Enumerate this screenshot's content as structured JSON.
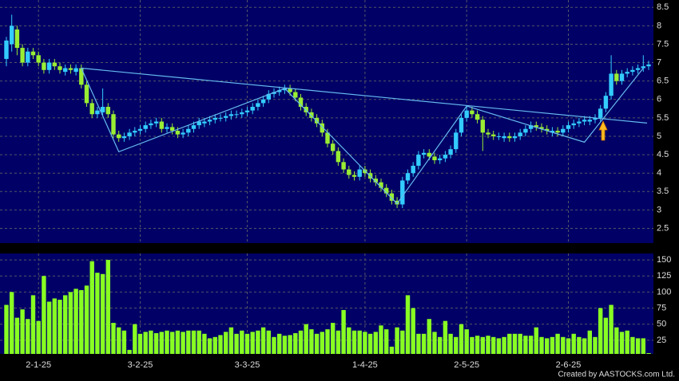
{
  "chart_data": {
    "type": "candlestick",
    "credit": "Created by AASTOCKS.com Ltd.",
    "categories": [
      null,
      null,
      null,
      null,
      null,
      null,
      "2-1-25",
      null,
      null,
      null,
      null,
      null,
      null,
      null,
      null,
      null,
      null,
      null,
      null,
      null,
      null,
      null,
      null,
      null,
      null,
      "3-2-25",
      null,
      null,
      null,
      null,
      null,
      null,
      null,
      null,
      null,
      null,
      null,
      null,
      null,
      null,
      null,
      null,
      null,
      null,
      null,
      "3-3-25",
      null,
      null,
      null,
      null,
      null,
      null,
      null,
      null,
      null,
      null,
      null,
      null,
      null,
      null,
      null,
      null,
      null,
      null,
      null,
      null,
      null,
      "1-4-25",
      null,
      null,
      null,
      null,
      null,
      null,
      null,
      null,
      null,
      null,
      null,
      null,
      null,
      null,
      null,
      null,
      null,
      null,
      "2-5-25",
      null,
      null,
      null,
      null,
      null,
      null,
      null,
      null,
      null,
      null,
      null,
      null,
      null,
      null,
      null,
      null,
      null,
      null,
      "2-6-25",
      null,
      null,
      null,
      null,
      null,
      null,
      null,
      null,
      null,
      null,
      null,
      null,
      null,
      null,
      null
    ],
    "open": [
      7.1,
      7.5,
      7.9,
      7.4,
      7.0,
      7.3,
      7.2,
      7.0,
      6.8,
      7.0,
      6.9,
      6.75,
      6.85,
      6.75,
      6.85,
      6.4,
      5.9,
      5.6,
      5.65,
      5.8,
      5.6,
      5.05,
      4.95,
      5.0,
      5.1,
      5.15,
      5.2,
      5.3,
      5.35,
      5.4,
      5.2,
      5.25,
      5.15,
      5.05,
      5.1,
      5.2,
      5.3,
      5.35,
      5.4,
      5.45,
      5.5,
      5.5,
      5.55,
      5.6,
      5.6,
      5.65,
      5.7,
      5.8,
      5.9,
      6.0,
      6.15,
      6.2,
      6.25,
      6.3,
      6.2,
      6.05,
      5.8,
      5.65,
      5.5,
      5.35,
      5.1,
      4.8,
      4.6,
      4.3,
      4.1,
      3.95,
      3.9,
      4.1,
      4.0,
      3.85,
      3.75,
      3.6,
      3.45,
      3.25,
      3.15,
      3.8,
      4.0,
      4.2,
      4.5,
      4.55,
      4.45,
      4.35,
      4.4,
      4.5,
      4.65,
      5.1,
      5.5,
      5.7,
      5.6,
      5.45,
      5.1,
      5.05,
      5.0,
      4.95,
      5.0,
      4.95,
      5.0,
      5.1,
      5.2,
      5.3,
      5.25,
      5.2,
      5.1,
      5.15,
      5.1,
      5.2,
      5.3,
      5.35,
      5.4,
      5.4,
      5.45,
      5.5,
      5.75,
      6.1,
      6.7,
      6.5,
      6.7,
      6.75,
      6.8,
      6.85,
      6.9
    ],
    "high": [
      7.7,
      8.3,
      8.0,
      7.5,
      7.4,
      7.4,
      7.3,
      7.1,
      7.1,
      7.1,
      7.0,
      6.95,
      6.95,
      6.95,
      6.95,
      6.5,
      6.0,
      5.8,
      6.3,
      5.9,
      5.7,
      5.15,
      5.1,
      5.2,
      5.25,
      5.3,
      5.4,
      5.45,
      5.5,
      5.5,
      5.35,
      5.35,
      5.25,
      5.2,
      5.3,
      5.4,
      5.5,
      5.5,
      5.55,
      5.6,
      5.6,
      5.65,
      5.7,
      5.7,
      5.75,
      5.8,
      5.9,
      6.0,
      6.1,
      6.25,
      6.3,
      6.35,
      6.4,
      6.4,
      6.3,
      6.15,
      5.9,
      5.75,
      5.6,
      5.45,
      5.2,
      4.9,
      4.7,
      4.4,
      4.2,
      4.05,
      4.2,
      4.2,
      4.1,
      3.95,
      3.85,
      3.7,
      3.55,
      3.35,
      3.9,
      4.1,
      4.3,
      4.6,
      4.65,
      4.65,
      4.55,
      4.5,
      4.6,
      4.75,
      5.2,
      5.6,
      5.8,
      5.8,
      5.7,
      5.55,
      5.2,
      5.15,
      5.1,
      5.1,
      5.1,
      5.1,
      5.2,
      5.3,
      5.4,
      5.4,
      5.35,
      5.3,
      5.25,
      5.25,
      5.3,
      5.4,
      5.45,
      5.5,
      5.55,
      5.55,
      5.6,
      5.85,
      6.2,
      7.2,
      6.8,
      6.8,
      6.85,
      6.9,
      6.95,
      7.2,
      7.05
    ],
    "low": [
      6.9,
      7.3,
      7.2,
      6.9,
      6.9,
      7.1,
      6.9,
      6.7,
      6.7,
      6.8,
      6.7,
      6.65,
      6.7,
      6.65,
      6.3,
      5.8,
      5.5,
      5.5,
      5.55,
      5.5,
      4.95,
      4.85,
      4.85,
      4.9,
      5.0,
      5.05,
      5.1,
      5.2,
      5.25,
      5.1,
      5.1,
      5.05,
      4.95,
      4.95,
      5.0,
      5.1,
      5.2,
      5.25,
      5.3,
      5.35,
      5.4,
      5.4,
      5.45,
      5.5,
      5.5,
      5.55,
      5.6,
      5.7,
      5.8,
      5.9,
      6.05,
      6.1,
      6.15,
      6.1,
      5.95,
      5.7,
      5.55,
      5.4,
      5.25,
      5.0,
      4.7,
      4.5,
      4.2,
      4.0,
      3.85,
      3.8,
      3.8,
      3.9,
      3.75,
      3.65,
      3.5,
      3.35,
      3.15,
      3.05,
      3.05,
      3.7,
      3.9,
      4.1,
      4.4,
      4.35,
      4.25,
      4.25,
      4.3,
      4.4,
      4.55,
      5.0,
      5.4,
      5.5,
      5.35,
      4.6,
      4.95,
      4.9,
      4.9,
      4.85,
      4.85,
      4.85,
      4.9,
      5.0,
      5.1,
      5.15,
      5.1,
      5.05,
      5.0,
      5.0,
      5.0,
      5.1,
      5.2,
      5.25,
      5.3,
      5.3,
      5.35,
      5.4,
      5.65,
      6.0,
      6.4,
      6.4,
      6.6,
      6.65,
      6.7,
      6.75,
      6.8
    ],
    "close": [
      7.6,
      8.0,
      7.4,
      7.0,
      7.3,
      7.2,
      7.0,
      6.8,
      7.0,
      6.9,
      6.8,
      6.85,
      6.8,
      6.85,
      6.4,
      5.9,
      5.6,
      5.7,
      5.8,
      5.6,
      5.05,
      4.95,
      5.0,
      5.1,
      5.15,
      5.2,
      5.3,
      5.35,
      5.4,
      5.2,
      5.25,
      5.15,
      5.05,
      5.1,
      5.2,
      5.3,
      5.4,
      5.4,
      5.45,
      5.5,
      5.5,
      5.55,
      5.6,
      5.6,
      5.65,
      5.7,
      5.8,
      5.9,
      6.0,
      6.15,
      6.2,
      6.25,
      6.3,
      6.2,
      6.05,
      5.8,
      5.65,
      5.5,
      5.35,
      5.1,
      4.8,
      4.6,
      4.3,
      4.1,
      3.95,
      3.9,
      4.1,
      4.0,
      3.85,
      3.75,
      3.6,
      3.45,
      3.25,
      3.15,
      3.8,
      4.0,
      4.2,
      4.5,
      4.55,
      4.45,
      4.35,
      4.4,
      4.5,
      4.65,
      5.1,
      5.5,
      5.7,
      5.6,
      5.45,
      5.1,
      5.05,
      5.0,
      5.0,
      5.0,
      4.95,
      5.0,
      5.1,
      5.2,
      5.3,
      5.25,
      5.2,
      5.15,
      5.15,
      5.1,
      5.2,
      5.3,
      5.35,
      5.4,
      5.45,
      5.45,
      5.5,
      5.75,
      6.1,
      6.7,
      6.5,
      6.7,
      6.75,
      6.8,
      6.85,
      6.9,
      6.95
    ],
    "up_color": "#33ccff",
    "down_color": "#99ee33",
    "ylim": [
      2.1,
      8.7
    ],
    "yticks": [
      2.5,
      3,
      3.5,
      4,
      4.5,
      5,
      5.5,
      6,
      6.5,
      7,
      7.5,
      8,
      8.5
    ],
    "grid": true,
    "trend_lines": {
      "color": "#66bbee",
      "lines": [
        {
          "x": [
            14,
            119.7
          ],
          "y": [
            6.85,
            5.36
          ]
        },
        {
          "x": [
            14,
            21,
            52,
            73,
            86,
            108,
            119
          ],
          "y": [
            6.85,
            4.58,
            6.3,
            3.17,
            5.82,
            4.84,
            6.85
          ]
        }
      ]
    },
    "volume": {
      "values": [
        80,
        100,
        60,
        73,
        58,
        95,
        55,
        125,
        85,
        90,
        88,
        95,
        100,
        105,
        103,
        110,
        148,
        130,
        128,
        150,
        52,
        45,
        40,
        10,
        50,
        35,
        38,
        40,
        36,
        38,
        40,
        38,
        40,
        38,
        40,
        40,
        40,
        35,
        28,
        30,
        33,
        38,
        45,
        35,
        40,
        35,
        38,
        40,
        45,
        40,
        30,
        35,
        32,
        33,
        36,
        40,
        50,
        42,
        35,
        38,
        42,
        52,
        40,
        72,
        45,
        40,
        40,
        38,
        35,
        38,
        48,
        42,
        15,
        45,
        40,
        95,
        75,
        35,
        35,
        58,
        38,
        30,
        55,
        35,
        30,
        50,
        42,
        30,
        32,
        30,
        32,
        30,
        28,
        30,
        35,
        35,
        35,
        32,
        32,
        45,
        30,
        28,
        30,
        35,
        30,
        28,
        35,
        30,
        28,
        40,
        30,
        75,
        60,
        80,
        45,
        38,
        40,
        30,
        28,
        28,
        5
      ],
      "color": "#88ff22",
      "ylim": [
        0,
        160
      ],
      "yticks": [
        25,
        50,
        75,
        100,
        125,
        150
      ]
    }
  }
}
